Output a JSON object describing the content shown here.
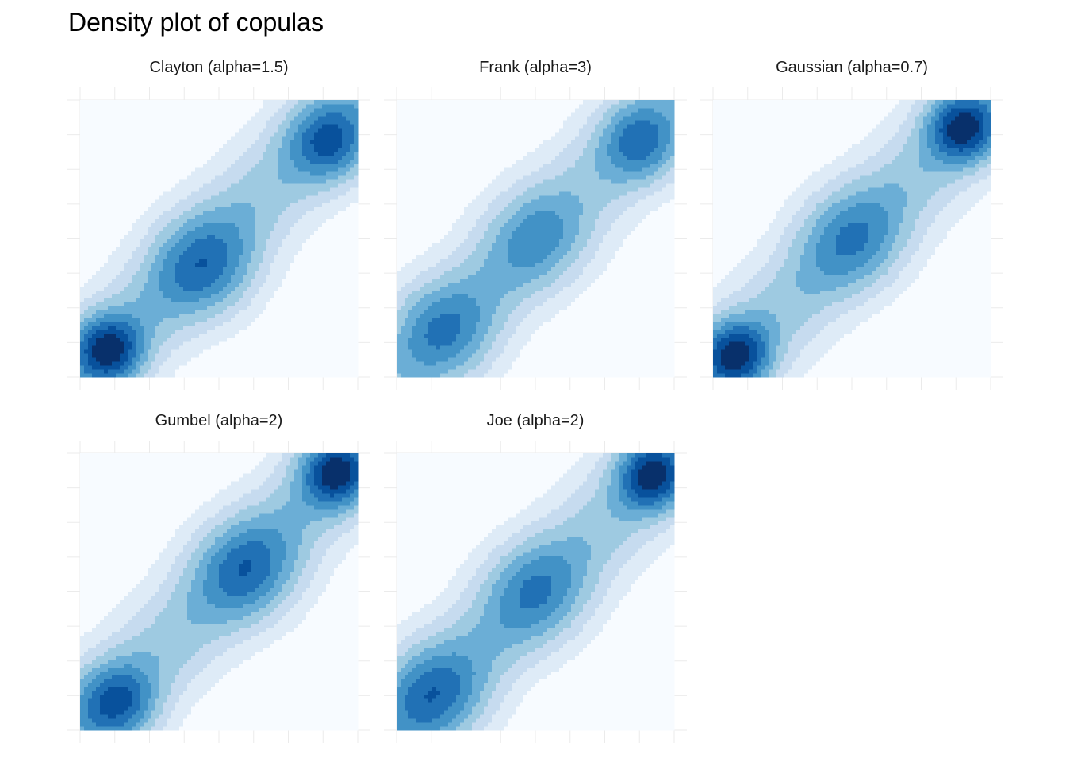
{
  "title": "Density plot of copulas",
  "chart_data": {
    "type": "heatmap",
    "subtype": "faceted 2D filled density contours",
    "title": "Density plot of copulas",
    "xlabel": "",
    "ylabel": "",
    "xlim": [
      0,
      1
    ],
    "ylim": [
      0,
      1
    ],
    "axis_tick_labels_shown": false,
    "grid": true,
    "legend": "none",
    "fill_palette": [
      "#f7fbff",
      "#deebf7",
      "#c6dbef",
      "#9ecae1",
      "#6baed6",
      "#4292c6",
      "#2171b5",
      "#08519c",
      "#08306b"
    ],
    "facets": [
      {
        "title": "Clayton (alpha=1.5)",
        "family": "Clayton",
        "alpha": 1.5,
        "peaks": [
          {
            "x": 0.1,
            "y": 0.1,
            "level": 8
          },
          {
            "x": 0.9,
            "y": 0.85,
            "level": 6
          },
          {
            "x": 0.45,
            "y": 0.4,
            "level": 5
          }
        ]
      },
      {
        "title": "Frank (alpha=3)",
        "family": "Frank",
        "alpha": 3,
        "peaks": [
          {
            "x": 0.17,
            "y": 0.17,
            "level": 5
          },
          {
            "x": 0.88,
            "y": 0.85,
            "level": 6
          },
          {
            "x": 0.5,
            "y": 0.5,
            "level": 4
          }
        ]
      },
      {
        "title": "Gaussian (alpha=0.7)",
        "family": "Gaussian",
        "alpha": 0.7,
        "peaks": [
          {
            "x": 0.08,
            "y": 0.08,
            "level": 8
          },
          {
            "x": 0.9,
            "y": 0.9,
            "level": 8
          },
          {
            "x": 0.5,
            "y": 0.5,
            "level": 4
          }
        ]
      },
      {
        "title": "Gumbel (alpha=2)",
        "family": "Gumbel",
        "alpha": 2,
        "peaks": [
          {
            "x": 0.92,
            "y": 0.93,
            "level": 8
          },
          {
            "x": 0.13,
            "y": 0.1,
            "level": 6
          },
          {
            "x": 0.6,
            "y": 0.58,
            "level": 5
          }
        ]
      },
      {
        "title": "Joe (alpha=2)",
        "family": "Joe",
        "alpha": 2,
        "peaks": [
          {
            "x": 0.92,
            "y": 0.92,
            "level": 8
          },
          {
            "x": 0.13,
            "y": 0.13,
            "level": 5
          },
          {
            "x": 0.5,
            "y": 0.5,
            "level": 4
          }
        ]
      }
    ]
  }
}
